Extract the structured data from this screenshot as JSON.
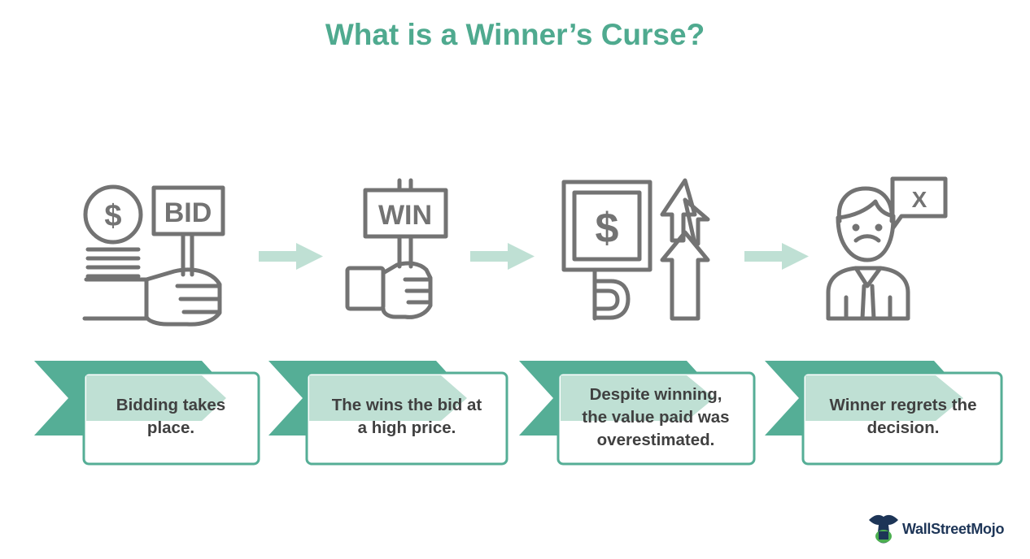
{
  "title": "What is a Winner’s Curse?",
  "steps": [
    {
      "line1": "Bidding takes",
      "line2": "place.",
      "icon": "hand-holding-bid-sign-with-coins-icon"
    },
    {
      "line1": "The wins the bid at",
      "line2": "a high price.",
      "icon": "hand-holding-win-sign-icon"
    },
    {
      "line1": "Despite winning,",
      "line2": "the value paid was",
      "line3": "overestimated.",
      "icon": "price-rising-arrows-icon"
    },
    {
      "line1": "Winner regrets the",
      "line2": "decision.",
      "icon": "regretful-man-icon"
    }
  ],
  "icon_text": {
    "bid": "BID",
    "win": "WIN",
    "dollar": "$",
    "cross": "X"
  },
  "brand": {
    "name": "WallStreetMojo",
    "icon": "bull-logo-icon"
  },
  "colors": {
    "title": "#4faa8f",
    "teal": "#55ae96",
    "light_teal": "#bfe0d4",
    "icon": "#737373",
    "text": "#404040",
    "arrow": "#bfe0d4",
    "brand_navy": "#1d3557",
    "brand_green": "#4caf50"
  }
}
